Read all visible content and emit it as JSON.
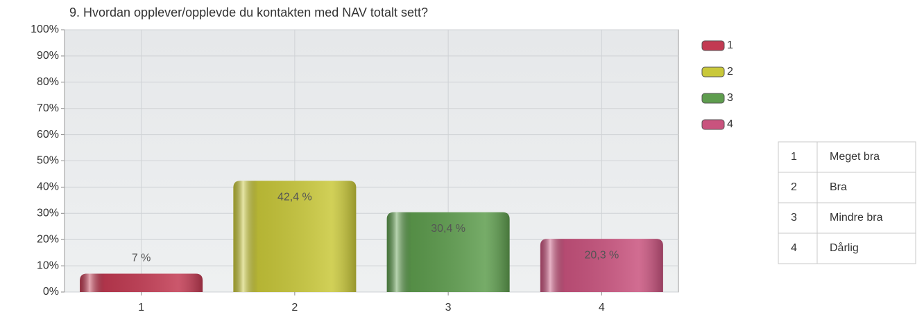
{
  "chart_data": {
    "type": "bar",
    "title": "9. Hvordan opplever/opplevde du kontakten med NAV totalt sett?",
    "categories": [
      "1",
      "2",
      "3",
      "4"
    ],
    "values": [
      7,
      42.4,
      30.4,
      20.3
    ],
    "value_labels": [
      "7 %",
      "42,4 %",
      "30,4 %",
      "20,3 %"
    ],
    "colors": [
      "#c23a52",
      "#c9c83a",
      "#5e9d4e",
      "#c9537e"
    ],
    "ylim": [
      0,
      100
    ],
    "yticks": [
      {
        "value": 0,
        "label": "0%"
      },
      {
        "value": 10,
        "label": "10%"
      },
      {
        "value": 20,
        "label": "20%"
      },
      {
        "value": 30,
        "label": "30%"
      },
      {
        "value": 40,
        "label": "40%"
      },
      {
        "value": 50,
        "label": "50%"
      },
      {
        "value": 60,
        "label": "60%"
      },
      {
        "value": 70,
        "label": "70%"
      },
      {
        "value": 80,
        "label": "80%"
      },
      {
        "value": 90,
        "label": "90%"
      },
      {
        "value": 100,
        "label": "100%"
      }
    ],
    "grid": true,
    "legend": "right"
  },
  "table": {
    "rows": [
      [
        "1",
        "Meget bra"
      ],
      [
        "2",
        "Bra"
      ],
      [
        "3",
        "Mindre bra"
      ],
      [
        "4",
        "Dårlig"
      ]
    ]
  }
}
